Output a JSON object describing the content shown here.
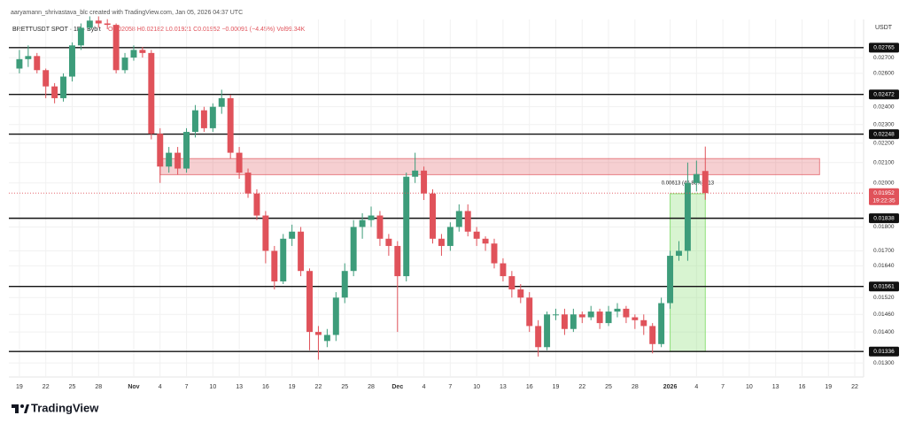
{
  "chart_data": {
    "type": "candlestick",
    "watermark": "aaryamann_shrivastava_blc created with TradingView.com, Jan 05, 2026 04:37 UTC",
    "title": "BRETTUSDT SPOT · 1D · Bybit",
    "ohlc_label": "O0.02058 H0.02182 L0.01921 C0.01952 −0.00091 (−4.45%) Vol99.34K",
    "currency": "USDT",
    "brand": "TradingView",
    "log_scale": true,
    "grid": true,
    "up_color": "#3d9c7a",
    "down_color": "#e0525a",
    "xlim": [
      -1.2,
      95.5
    ],
    "ylim": [
      0.01273,
      0.02958
    ],
    "xticks": [
      {
        "value": 0,
        "label": "19"
      },
      {
        "value": 3,
        "label": "22"
      },
      {
        "value": 6,
        "label": "25"
      },
      {
        "value": 9,
        "label": "28"
      },
      {
        "value": 13,
        "label": "Nov"
      },
      {
        "value": 16,
        "label": "4"
      },
      {
        "value": 19,
        "label": "7"
      },
      {
        "value": 22,
        "label": "10"
      },
      {
        "value": 25,
        "label": "13"
      },
      {
        "value": 28,
        "label": "16"
      },
      {
        "value": 31,
        "label": "19"
      },
      {
        "value": 34,
        "label": "22"
      },
      {
        "value": 37,
        "label": "25"
      },
      {
        "value": 40,
        "label": "28"
      },
      {
        "value": 43,
        "label": "Dec"
      },
      {
        "value": 46,
        "label": "4"
      },
      {
        "value": 49,
        "label": "7"
      },
      {
        "value": 52,
        "label": "10"
      },
      {
        "value": 55,
        "label": "13"
      },
      {
        "value": 58,
        "label": "16"
      },
      {
        "value": 61,
        "label": "19"
      },
      {
        "value": 64,
        "label": "22"
      },
      {
        "value": 67,
        "label": "25"
      },
      {
        "value": 70,
        "label": "28"
      },
      {
        "value": 74,
        "label": "2026"
      },
      {
        "value": 77,
        "label": "4"
      },
      {
        "value": 80,
        "label": "7"
      },
      {
        "value": 83,
        "label": "10"
      },
      {
        "value": 86,
        "label": "13"
      },
      {
        "value": 89,
        "label": "16"
      },
      {
        "value": 92,
        "label": "19"
      },
      {
        "value": 95,
        "label": "22"
      }
    ],
    "yticks": [
      {
        "value": 0.027,
        "label": "0.02700"
      },
      {
        "value": 0.026,
        "label": "0.02600"
      },
      {
        "value": 0.024,
        "label": "0.02400"
      },
      {
        "value": 0.023,
        "label": "0.02300"
      },
      {
        "value": 0.022,
        "label": "0.02200"
      },
      {
        "value": 0.021,
        "label": "0.02100"
      },
      {
        "value": 0.02,
        "label": "0.02000"
      },
      {
        "value": 0.018,
        "label": "0.01800"
      },
      {
        "value": 0.017,
        "label": "0.01700"
      },
      {
        "value": 0.0164,
        "label": "0.01640"
      },
      {
        "value": 0.0152,
        "label": "0.01520"
      },
      {
        "value": 0.0146,
        "label": "0.01460"
      },
      {
        "value": 0.014,
        "label": "0.01400"
      },
      {
        "value": 0.013,
        "label": "0.01300"
      }
    ],
    "levels": [
      {
        "value": 0.02765,
        "label": "0.02765"
      },
      {
        "value": 0.02472,
        "label": "0.02472"
      },
      {
        "value": 0.02248,
        "label": "0.02248"
      },
      {
        "value": 0.01838,
        "label": "0.01838"
      },
      {
        "value": 0.01561,
        "label": "0.01561"
      },
      {
        "value": 0.01336,
        "label": "0.01336"
      }
    ],
    "last_price": {
      "value": 0.01952,
      "label": "0.01952",
      "countdown": "19:22:35"
    },
    "zone": {
      "xlim": [
        16,
        91
      ],
      "ylim": [
        0.0204,
        0.0212
      ],
      "color": "#e0525a"
    },
    "measure": {
      "xlim": [
        74,
        78
      ],
      "ylim": [
        0.01336,
        0.01949
      ],
      "label": "0.00613 (45.88%) 613",
      "color": "#8fe07a"
    },
    "open": [
      0.0263,
      0.0269,
      0.0271,
      0.0262,
      0.0252,
      0.0245,
      0.0258,
      0.0278,
      0.029,
      0.0295,
      0.0293,
      0.0292,
      0.0262,
      0.027,
      0.0275,
      0.0273,
      0.0225,
      0.0208,
      0.0215,
      0.0207,
      0.0226,
      0.0238,
      0.0228,
      0.024,
      0.0245,
      0.0215,
      0.0205,
      0.0195,
      0.0185,
      0.017,
      0.0158,
      0.0175,
      0.0178,
      0.0162,
      0.014,
      0.0137,
      0.0139,
      0.0152,
      0.0162,
      0.018,
      0.0183,
      0.0185,
      0.0175,
      0.0172,
      0.016,
      0.0203,
      0.0206,
      0.0195,
      0.0175,
      0.0172,
      0.018,
      0.0187,
      0.0178,
      0.0175,
      0.0173,
      0.0165,
      0.016,
      0.0155,
      0.0152,
      0.0142,
      0.0135,
      0.0146,
      0.0146,
      0.0141,
      0.0146,
      0.0145,
      0.0147,
      0.0143,
      0.0147,
      0.0148,
      0.0145,
      0.0144,
      0.0142,
      0.0136,
      0.015,
      0.0168,
      0.017,
      0.02,
      0.02058
    ],
    "high": [
      0.0275,
      0.0278,
      0.0273,
      0.0263,
      0.0254,
      0.026,
      0.028,
      0.0293,
      0.0298,
      0.0298,
      0.0296,
      0.0293,
      0.0273,
      0.0278,
      0.0277,
      0.0275,
      0.0228,
      0.0218,
      0.0218,
      0.0228,
      0.0241,
      0.024,
      0.0242,
      0.025,
      0.0247,
      0.0218,
      0.0207,
      0.0197,
      0.0187,
      0.0172,
      0.0177,
      0.0181,
      0.018,
      0.0163,
      0.0142,
      0.0141,
      0.0154,
      0.0165,
      0.0183,
      0.0186,
      0.0189,
      0.0187,
      0.0177,
      0.0174,
      0.0205,
      0.0215,
      0.0208,
      0.0197,
      0.0177,
      0.0182,
      0.019,
      0.019,
      0.018,
      0.0176,
      0.0175,
      0.0167,
      0.0162,
      0.0157,
      0.0154,
      0.0144,
      0.0147,
      0.0148,
      0.0148,
      0.0148,
      0.0147,
      0.0149,
      0.0148,
      0.0149,
      0.015,
      0.0149,
      0.0146,
      0.0146,
      0.0143,
      0.0152,
      0.017,
      0.0174,
      0.021,
      0.0211,
      0.02182
    ],
    "low": [
      0.026,
      0.0264,
      0.026,
      0.0245,
      0.0242,
      0.0243,
      0.0255,
      0.0275,
      0.0288,
      0.029,
      0.0289,
      0.026,
      0.026,
      0.0268,
      0.027,
      0.0222,
      0.02,
      0.0205,
      0.0204,
      0.0205,
      0.0223,
      0.0226,
      0.0226,
      0.0236,
      0.0212,
      0.0202,
      0.0193,
      0.0183,
      0.0165,
      0.0155,
      0.0157,
      0.0172,
      0.016,
      0.0134,
      0.0131,
      0.0135,
      0.0137,
      0.015,
      0.016,
      0.0175,
      0.018,
      0.0172,
      0.0168,
      0.014,
      0.0158,
      0.02,
      0.0192,
      0.0173,
      0.0168,
      0.017,
      0.0178,
      0.0176,
      0.0172,
      0.017,
      0.0163,
      0.0158,
      0.0152,
      0.015,
      0.014,
      0.0132,
      0.0134,
      0.0144,
      0.0139,
      0.014,
      0.0143,
      0.0144,
      0.0141,
      0.0142,
      0.0145,
      0.0143,
      0.0141,
      0.0139,
      0.0133,
      0.0135,
      0.0148,
      0.0166,
      0.0166,
      0.0196,
      0.01921
    ],
    "close": [
      0.0269,
      0.0271,
      0.0262,
      0.0252,
      0.0245,
      0.0258,
      0.0278,
      0.029,
      0.0295,
      0.0293,
      0.0292,
      0.0262,
      0.027,
      0.0275,
      0.0273,
      0.0225,
      0.0208,
      0.0215,
      0.0207,
      0.0226,
      0.0238,
      0.0228,
      0.024,
      0.0245,
      0.0215,
      0.0205,
      0.0195,
      0.0185,
      0.017,
      0.0158,
      0.0175,
      0.0178,
      0.0162,
      0.014,
      0.0139,
      0.0139,
      0.0152,
      0.0162,
      0.018,
      0.0183,
      0.0185,
      0.0175,
      0.0172,
      0.016,
      0.0203,
      0.0206,
      0.0195,
      0.0175,
      0.0172,
      0.018,
      0.0187,
      0.0178,
      0.0175,
      0.0173,
      0.0165,
      0.016,
      0.0155,
      0.0152,
      0.0142,
      0.0135,
      0.0146,
      0.0146,
      0.0141,
      0.0146,
      0.0145,
      0.0147,
      0.0143,
      0.0147,
      0.0148,
      0.0145,
      0.0144,
      0.0142,
      0.0136,
      0.015,
      0.0168,
      0.017,
      0.02,
      0.02043,
      0.01952
    ]
  }
}
